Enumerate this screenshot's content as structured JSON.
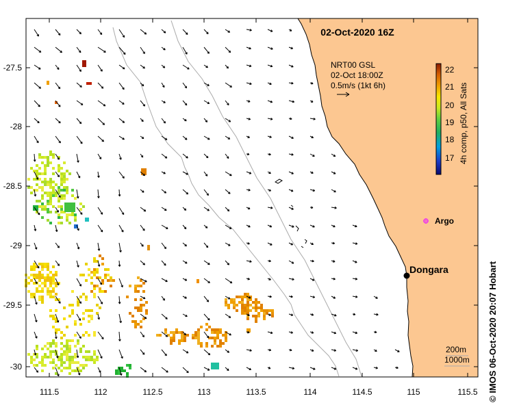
{
  "map": {
    "title": "02-Oct-2020 16Z",
    "vector_info": {
      "source": "NRT00 GSL",
      "time": "02-Oct 18:00Z",
      "scale_label": "0.5m/s (1kt 6h)"
    },
    "colorbar": {
      "label": "4h comp, p50, All Sats",
      "ticks": [
        "17",
        "18",
        "19",
        "20",
        "21",
        "22"
      ]
    },
    "places": [
      {
        "name": "Argo",
        "color": "#ee33ee"
      },
      {
        "name": "Dongara",
        "color": "#000000"
      }
    ],
    "depth_legend": [
      "200m",
      "1000m"
    ],
    "credit": "© IMOS 06-Oct-2020 20:07 Hobart",
    "x_ticks": [
      "111.5",
      "112",
      "112.5",
      "113",
      "113.5",
      "114",
      "114.5",
      "115",
      "115.5"
    ],
    "y_ticks": [
      "-27.5",
      "-28",
      "-28.5",
      "-29",
      "-29.5",
      "-30"
    ],
    "colors": {
      "land": "#fcc791",
      "coast": "#000000",
      "bathy": "#aaaaaa"
    }
  }
}
